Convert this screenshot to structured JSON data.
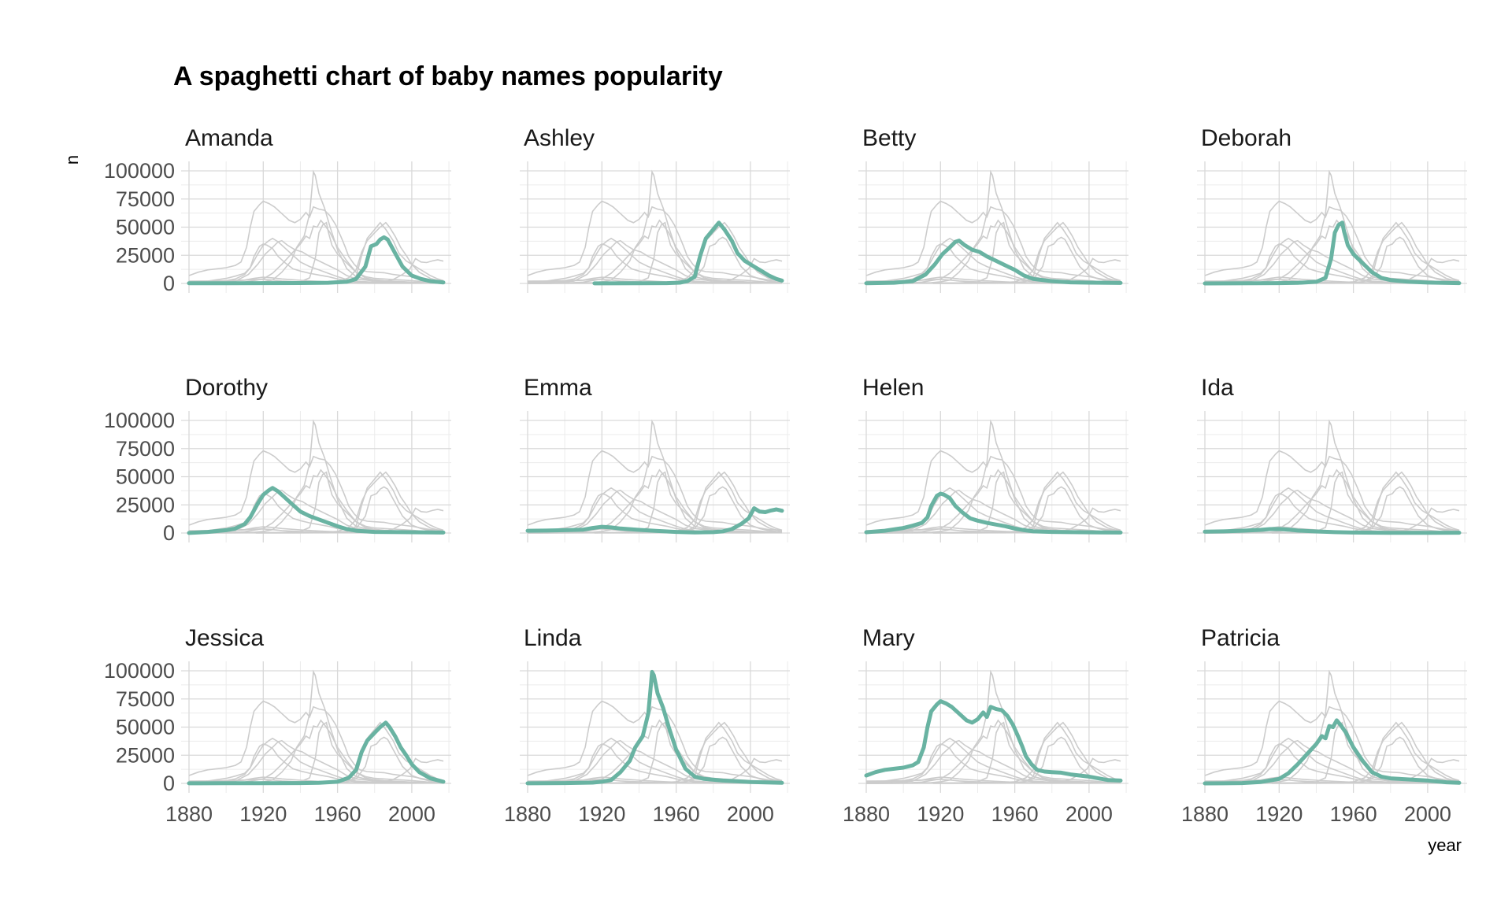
{
  "chart_data": {
    "type": "line",
    "title": "A spaghetti chart of baby names popularity",
    "xlabel": "year",
    "ylabel": "n",
    "xlim": [
      1880,
      2017
    ],
    "ylim": [
      0,
      100000
    ],
    "xticks": [
      1880,
      1920,
      1960,
      2000
    ],
    "yticks": [
      0,
      25000,
      50000,
      75000,
      100000
    ],
    "grid": true,
    "facet_columns": 4,
    "highlight_color": "#69b3a2",
    "context_color": "#cccccc",
    "series": [
      {
        "name": "Amanda",
        "points": [
          [
            1880,
            200
          ],
          [
            1900,
            200
          ],
          [
            1920,
            250
          ],
          [
            1940,
            350
          ],
          [
            1955,
            600
          ],
          [
            1965,
            1500
          ],
          [
            1970,
            4000
          ],
          [
            1975,
            15000
          ],
          [
            1978,
            33000
          ],
          [
            1981,
            35000
          ],
          [
            1983,
            39000
          ],
          [
            1985,
            41000
          ],
          [
            1987,
            39000
          ],
          [
            1990,
            30000
          ],
          [
            1995,
            15000
          ],
          [
            2000,
            7000
          ],
          [
            2005,
            4000
          ],
          [
            2010,
            2000
          ],
          [
            2017,
            900
          ]
        ]
      },
      {
        "name": "Ashley",
        "points": [
          [
            1916,
            100
          ],
          [
            1940,
            150
          ],
          [
            1955,
            300
          ],
          [
            1962,
            700
          ],
          [
            1966,
            2000
          ],
          [
            1970,
            6000
          ],
          [
            1973,
            25000
          ],
          [
            1976,
            40000
          ],
          [
            1980,
            48000
          ],
          [
            1983,
            54000
          ],
          [
            1986,
            48000
          ],
          [
            1990,
            38000
          ],
          [
            1993,
            27000
          ],
          [
            1997,
            20000
          ],
          [
            2002,
            15000
          ],
          [
            2006,
            11000
          ],
          [
            2010,
            7000
          ],
          [
            2014,
            4000
          ],
          [
            2017,
            2500
          ]
        ]
      },
      {
        "name": "Betty",
        "points": [
          [
            1880,
            200
          ],
          [
            1895,
            600
          ],
          [
            1905,
            2000
          ],
          [
            1912,
            8000
          ],
          [
            1917,
            17000
          ],
          [
            1921,
            26000
          ],
          [
            1925,
            32000
          ],
          [
            1928,
            37000
          ],
          [
            1930,
            38000
          ],
          [
            1933,
            34000
          ],
          [
            1937,
            30000
          ],
          [
            1941,
            28000
          ],
          [
            1945,
            24000
          ],
          [
            1950,
            20000
          ],
          [
            1955,
            16000
          ],
          [
            1960,
            12000
          ],
          [
            1965,
            7000
          ],
          [
            1970,
            4000
          ],
          [
            1980,
            2000
          ],
          [
            1990,
            1000
          ],
          [
            2000,
            700
          ],
          [
            2017,
            400
          ]
        ]
      },
      {
        "name": "Deborah",
        "points": [
          [
            1880,
            0
          ],
          [
            1920,
            300
          ],
          [
            1930,
            500
          ],
          [
            1940,
            1500
          ],
          [
            1945,
            5000
          ],
          [
            1948,
            22000
          ],
          [
            1950,
            45000
          ],
          [
            1952,
            52000
          ],
          [
            1954,
            54000
          ],
          [
            1955,
            46000
          ],
          [
            1957,
            34000
          ],
          [
            1960,
            26000
          ],
          [
            1965,
            18000
          ],
          [
            1970,
            10000
          ],
          [
            1975,
            5000
          ],
          [
            1980,
            3000
          ],
          [
            1990,
            1500
          ],
          [
            2000,
            800
          ],
          [
            2017,
            300
          ]
        ]
      },
      {
        "name": "Dorothy",
        "points": [
          [
            1880,
            100
          ],
          [
            1890,
            1000
          ],
          [
            1900,
            2500
          ],
          [
            1905,
            4000
          ],
          [
            1910,
            8000
          ],
          [
            1913,
            14000
          ],
          [
            1917,
            26000
          ],
          [
            1920,
            34000
          ],
          [
            1923,
            38000
          ],
          [
            1925,
            40000
          ],
          [
            1928,
            37000
          ],
          [
            1932,
            31000
          ],
          [
            1936,
            25000
          ],
          [
            1940,
            19000
          ],
          [
            1945,
            15000
          ],
          [
            1950,
            12000
          ],
          [
            1955,
            9000
          ],
          [
            1960,
            6000
          ],
          [
            1965,
            3500
          ],
          [
            1970,
            2000
          ],
          [
            1980,
            1000
          ],
          [
            2017,
            400
          ]
        ]
      },
      {
        "name": "Emma",
        "points": [
          [
            1880,
            2000
          ],
          [
            1890,
            2200
          ],
          [
            1900,
            2500
          ],
          [
            1910,
            3000
          ],
          [
            1915,
            4500
          ],
          [
            1920,
            5500
          ],
          [
            1925,
            5000
          ],
          [
            1930,
            4000
          ],
          [
            1940,
            2800
          ],
          [
            1950,
            1800
          ],
          [
            1960,
            1000
          ],
          [
            1970,
            500
          ],
          [
            1980,
            800
          ],
          [
            1985,
            1500
          ],
          [
            1990,
            3500
          ],
          [
            1995,
            8000
          ],
          [
            1999,
            13000
          ],
          [
            2002,
            22000
          ],
          [
            2005,
            19000
          ],
          [
            2008,
            18500
          ],
          [
            2011,
            20000
          ],
          [
            2014,
            21000
          ],
          [
            2017,
            19800
          ]
        ]
      },
      {
        "name": "Helen",
        "points": [
          [
            1880,
            700
          ],
          [
            1890,
            2000
          ],
          [
            1900,
            4500
          ],
          [
            1905,
            6500
          ],
          [
            1910,
            9000
          ],
          [
            1913,
            14000
          ],
          [
            1915,
            24000
          ],
          [
            1918,
            33000
          ],
          [
            1920,
            35000
          ],
          [
            1922,
            34000
          ],
          [
            1925,
            31000
          ],
          [
            1928,
            24000
          ],
          [
            1932,
            18000
          ],
          [
            1936,
            13000
          ],
          [
            1940,
            11000
          ],
          [
            1945,
            9000
          ],
          [
            1950,
            7500
          ],
          [
            1955,
            6000
          ],
          [
            1960,
            4000
          ],
          [
            1965,
            2500
          ],
          [
            1970,
            1500
          ],
          [
            1980,
            1000
          ],
          [
            2000,
            600
          ],
          [
            2017,
            400
          ]
        ]
      },
      {
        "name": "Ida",
        "points": [
          [
            1880,
            1200
          ],
          [
            1890,
            1500
          ],
          [
            1900,
            2000
          ],
          [
            1910,
            2800
          ],
          [
            1915,
            3500
          ],
          [
            1920,
            3600
          ],
          [
            1925,
            3000
          ],
          [
            1930,
            2200
          ],
          [
            1940,
            1400
          ],
          [
            1950,
            800
          ],
          [
            1960,
            400
          ],
          [
            1980,
            150
          ],
          [
            2000,
            150
          ],
          [
            2017,
            300
          ]
        ]
      },
      {
        "name": "Jessica",
        "points": [
          [
            1880,
            100
          ],
          [
            1900,
            150
          ],
          [
            1920,
            200
          ],
          [
            1940,
            300
          ],
          [
            1950,
            500
          ],
          [
            1960,
            1500
          ],
          [
            1966,
            5000
          ],
          [
            1970,
            12000
          ],
          [
            1973,
            28000
          ],
          [
            1976,
            38000
          ],
          [
            1980,
            45000
          ],
          [
            1983,
            50000
          ],
          [
            1986,
            54000
          ],
          [
            1988,
            50000
          ],
          [
            1991,
            42000
          ],
          [
            1994,
            32000
          ],
          [
            1997,
            25000
          ],
          [
            2000,
            17000
          ],
          [
            2004,
            10000
          ],
          [
            2010,
            4500
          ],
          [
            2017,
            1500
          ]
        ]
      },
      {
        "name": "Linda",
        "points": [
          [
            1880,
            100
          ],
          [
            1900,
            300
          ],
          [
            1915,
            700
          ],
          [
            1920,
            1500
          ],
          [
            1925,
            3000
          ],
          [
            1930,
            10000
          ],
          [
            1935,
            20000
          ],
          [
            1938,
            32000
          ],
          [
            1942,
            42000
          ],
          [
            1945,
            62000
          ],
          [
            1946,
            80000
          ],
          [
            1947,
            99000
          ],
          [
            1948,
            96000
          ],
          [
            1950,
            80000
          ],
          [
            1953,
            67000
          ],
          [
            1956,
            50000
          ],
          [
            1960,
            30000
          ],
          [
            1965,
            13000
          ],
          [
            1970,
            6000
          ],
          [
            1975,
            4000
          ],
          [
            1985,
            2500
          ],
          [
            2000,
            1200
          ],
          [
            2017,
            500
          ]
        ]
      },
      {
        "name": "Mary",
        "points": [
          [
            1880,
            7000
          ],
          [
            1885,
            10000
          ],
          [
            1890,
            12000
          ],
          [
            1895,
            13000
          ],
          [
            1900,
            14000
          ],
          [
            1905,
            16000
          ],
          [
            1908,
            19000
          ],
          [
            1911,
            32000
          ],
          [
            1913,
            50000
          ],
          [
            1915,
            64000
          ],
          [
            1918,
            70000
          ],
          [
            1920,
            73000
          ],
          [
            1923,
            71000
          ],
          [
            1926,
            68000
          ],
          [
            1930,
            62000
          ],
          [
            1934,
            56000
          ],
          [
            1937,
            54000
          ],
          [
            1940,
            57000
          ],
          [
            1943,
            63000
          ],
          [
            1945,
            59000
          ],
          [
            1947,
            68000
          ],
          [
            1950,
            66000
          ],
          [
            1953,
            65000
          ],
          [
            1956,
            60000
          ],
          [
            1959,
            52000
          ],
          [
            1962,
            41000
          ],
          [
            1964,
            33000
          ],
          [
            1966,
            24000
          ],
          [
            1969,
            17000
          ],
          [
            1972,
            12000
          ],
          [
            1976,
            10500
          ],
          [
            1980,
            10000
          ],
          [
            1985,
            9500
          ],
          [
            1990,
            8000
          ],
          [
            1995,
            7000
          ],
          [
            2000,
            6000
          ],
          [
            2005,
            4500
          ],
          [
            2010,
            3000
          ],
          [
            2017,
            2500
          ]
        ]
      },
      {
        "name": "Patricia",
        "points": [
          [
            1880,
            0
          ],
          [
            1890,
            100
          ],
          [
            1900,
            300
          ],
          [
            1910,
            1200
          ],
          [
            1920,
            4000
          ],
          [
            1925,
            9000
          ],
          [
            1930,
            17000
          ],
          [
            1935,
            26000
          ],
          [
            1940,
            35000
          ],
          [
            1943,
            42000
          ],
          [
            1945,
            40000
          ],
          [
            1947,
            51000
          ],
          [
            1949,
            50000
          ],
          [
            1951,
            56000
          ],
          [
            1953,
            52000
          ],
          [
            1956,
            45000
          ],
          [
            1960,
            32000
          ],
          [
            1965,
            20000
          ],
          [
            1970,
            10000
          ],
          [
            1975,
            6000
          ],
          [
            1980,
            4500
          ],
          [
            1990,
            3500
          ],
          [
            2000,
            2500
          ],
          [
            2010,
            1000
          ],
          [
            2017,
            500
          ]
        ]
      }
    ]
  }
}
